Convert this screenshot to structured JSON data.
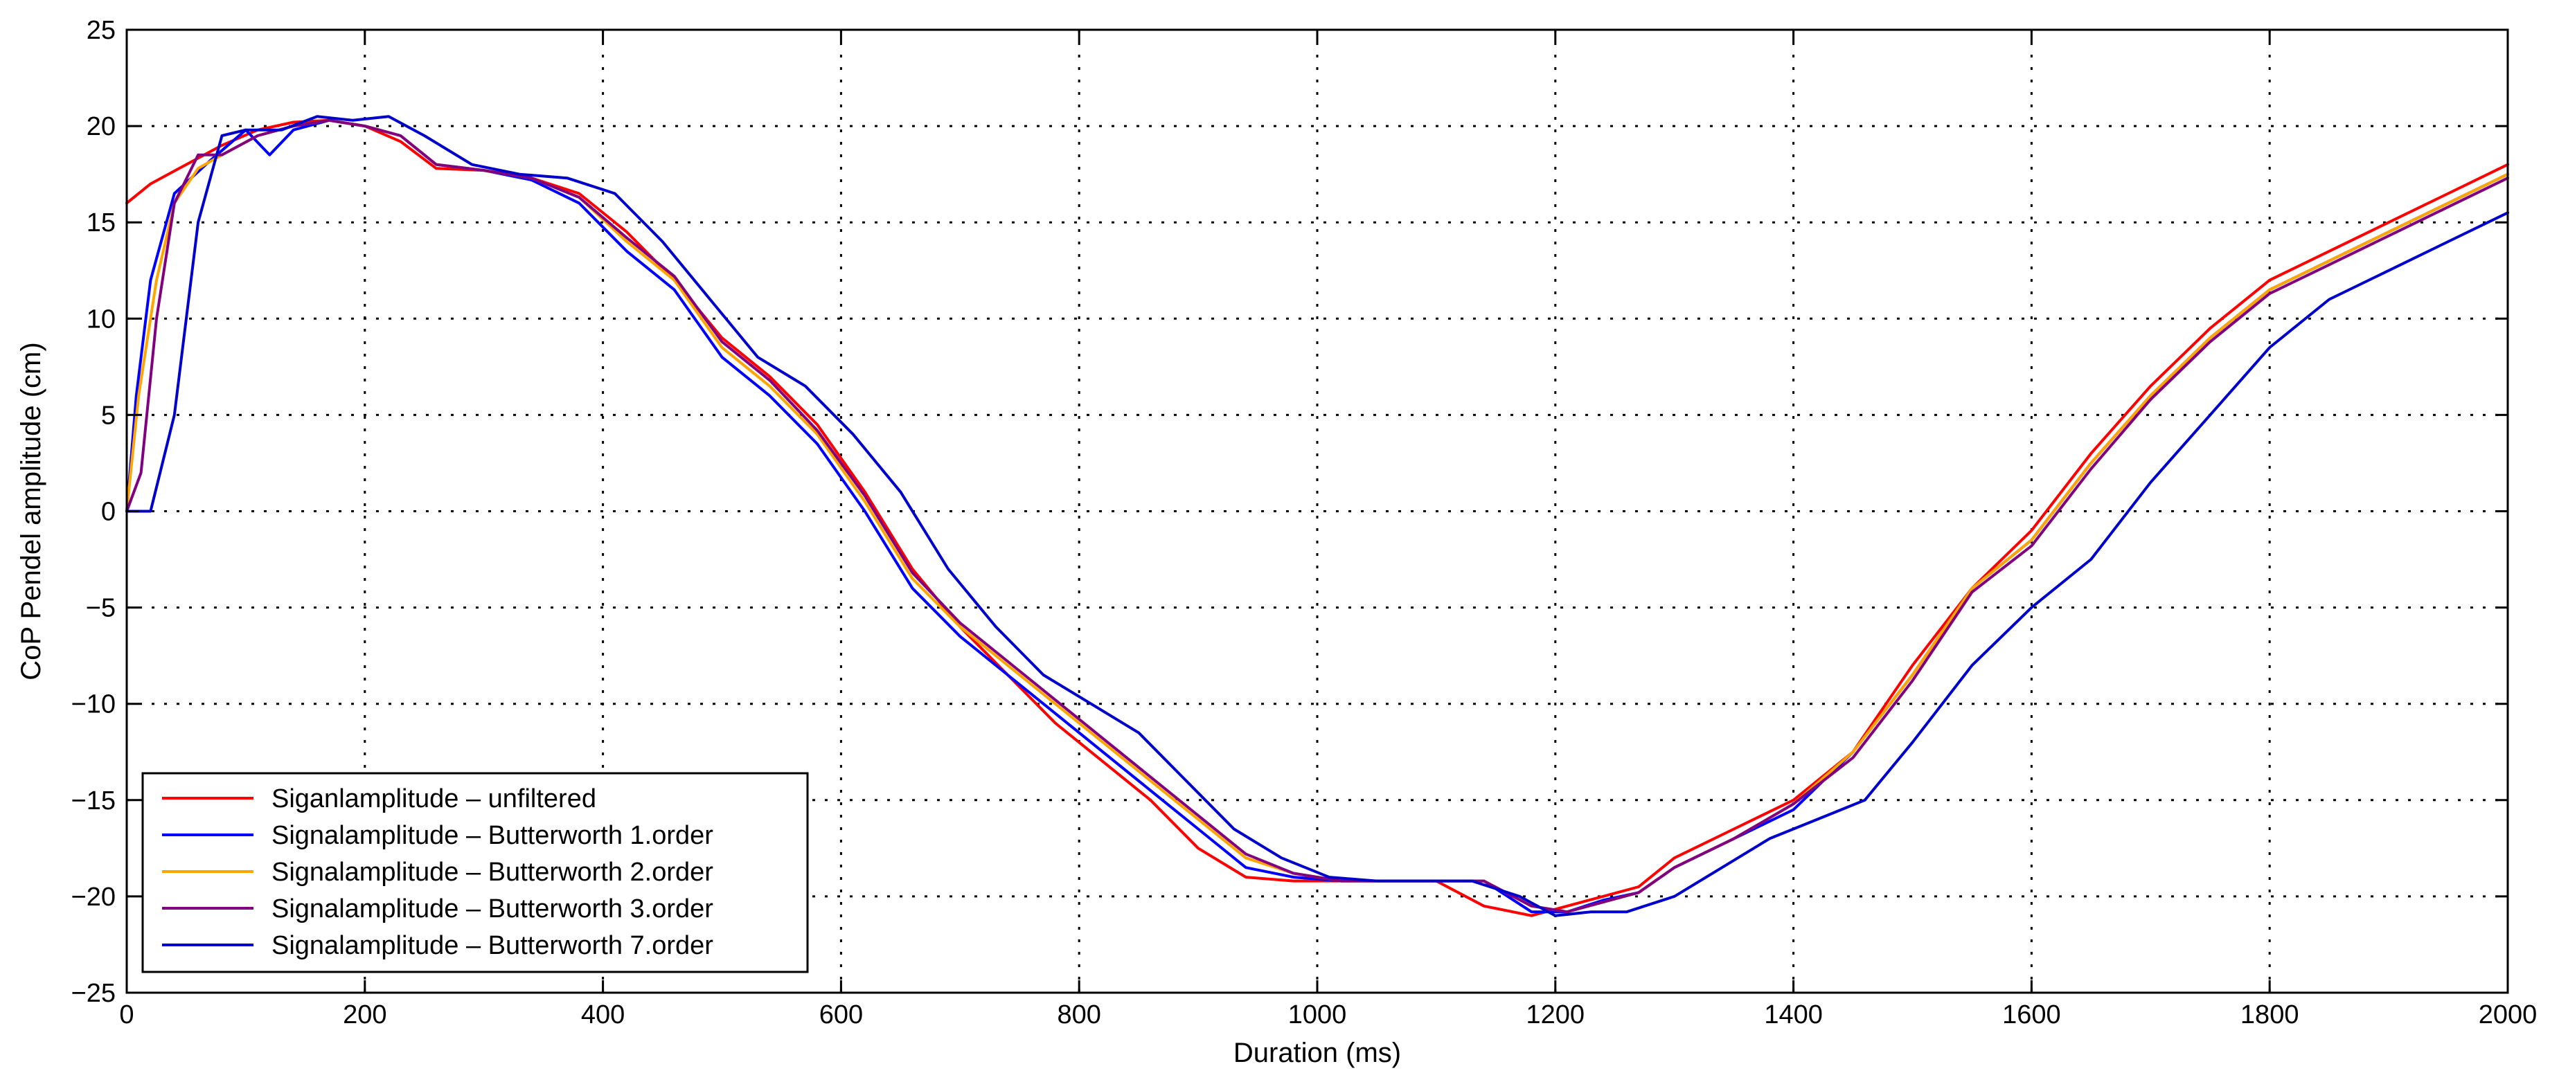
{
  "chart_data": {
    "type": "line",
    "title": "",
    "xlabel": "Duration (ms)",
    "ylabel": "CoP Pendel amplitude (cm)",
    "xlim": [
      0,
      2000
    ],
    "ylim": [
      -25,
      25
    ],
    "xticks": [
      0,
      200,
      400,
      600,
      800,
      1000,
      1200,
      1400,
      1600,
      1800,
      2000
    ],
    "yticks": [
      25,
      20,
      15,
      10,
      5,
      0,
      -5,
      -10,
      -15,
      -20,
      -25
    ],
    "grid": true,
    "legend_position": "bottom-left",
    "series": [
      {
        "name": "Siganlamplitude – unfiltered",
        "color": "#ff0000",
        "x": [
          0,
          20,
          50,
          80,
          110,
          140,
          170,
          200,
          230,
          260,
          300,
          340,
          380,
          420,
          460,
          500,
          540,
          580,
          620,
          660,
          700,
          740,
          780,
          820,
          860,
          900,
          940,
          980,
          1010,
          1050,
          1100,
          1140,
          1180,
          1210,
          1240,
          1270,
          1300,
          1350,
          1400,
          1450,
          1500,
          1550,
          1600,
          1650,
          1700,
          1750,
          1800,
          1850,
          1900,
          1950,
          2000
        ],
        "y": [
          16,
          17,
          18,
          19,
          19.8,
          20.2,
          20.3,
          20,
          19.2,
          17.8,
          17.7,
          17.3,
          16.5,
          14.5,
          12,
          9,
          7,
          4.5,
          1,
          -3,
          -6,
          -8.5,
          -11,
          -13,
          -15,
          -17.5,
          -19,
          -19.2,
          -19.2,
          -19.2,
          -19.2,
          -20.5,
          -21,
          -20.5,
          -20,
          -19.5,
          -18,
          -16.5,
          -15,
          -12.5,
          -8,
          -4,
          -1,
          3,
          6.5,
          9.5,
          12,
          13.5,
          15,
          16.5,
          18
        ]
      },
      {
        "name": "Signalamplitude – Butterworth 1.order",
        "color": "#0000ff",
        "x": [
          0,
          8,
          20,
          40,
          70,
          100,
          120,
          140,
          170,
          200,
          230,
          260,
          300,
          340,
          380,
          420,
          460,
          500,
          540,
          580,
          620,
          660,
          700,
          740,
          780,
          820,
          860,
          900,
          940,
          980,
          1020,
          1060,
          1100,
          1140,
          1180,
          1210,
          1240,
          1270,
          1300,
          1350,
          1400,
          1450,
          1500,
          1550,
          1600,
          1650,
          1700,
          1750,
          1800,
          1850,
          1900,
          1950,
          2000
        ],
        "y": [
          0,
          6,
          12,
          16.5,
          18.2,
          19.8,
          18.5,
          19.8,
          20.3,
          20,
          19.5,
          18,
          17.7,
          17.2,
          16,
          13.5,
          11.5,
          8,
          6,
          3.5,
          0,
          -4,
          -6.5,
          -8.5,
          -10.5,
          -12.5,
          -14.5,
          -16.5,
          -18.5,
          -19,
          -19.2,
          -19.2,
          -19.2,
          -19.2,
          -20.8,
          -20.8,
          -20.2,
          -19.8,
          -18.5,
          -17,
          -15.5,
          -12.5,
          -8.5,
          -4,
          -1.5,
          2.5,
          6,
          9,
          11.5,
          13,
          14.5,
          16,
          17.5
        ]
      },
      {
        "name": "Signalamplitude – Butterworth 2.order",
        "color": "#ffa500",
        "x": [
          0,
          10,
          25,
          40,
          60,
          80,
          110,
          140,
          170,
          200,
          230,
          260,
          300,
          340,
          380,
          420,
          460,
          500,
          540,
          580,
          620,
          660,
          700,
          740,
          780,
          820,
          860,
          900,
          940,
          980,
          1020,
          1060,
          1100,
          1140,
          1180,
          1210,
          1240,
          1270,
          1300,
          1350,
          1400,
          1450,
          1500,
          1550,
          1600,
          1650,
          1700,
          1750,
          1800,
          1850,
          1900,
          1950,
          2000
        ],
        "y": [
          0,
          6,
          12,
          16,
          17.8,
          18.5,
          19.5,
          20,
          20.3,
          20,
          19.5,
          18,
          17.7,
          17.3,
          16.3,
          14,
          12,
          8.5,
          6.5,
          4,
          0.5,
          -3.5,
          -6,
          -8,
          -10,
          -12,
          -14,
          -16,
          -18,
          -18.8,
          -19.2,
          -19.2,
          -19.2,
          -19.2,
          -20.5,
          -20.8,
          -20.3,
          -19.8,
          -18.5,
          -17,
          -15.2,
          -12.5,
          -8.5,
          -4,
          -1.5,
          2.5,
          6,
          9,
          11.5,
          13,
          14.5,
          16,
          17.5
        ]
      },
      {
        "name": "Signalamplitude – Butterworth 3.order",
        "color": "#800080",
        "x": [
          0,
          12,
          25,
          40,
          60,
          80,
          110,
          140,
          170,
          200,
          230,
          260,
          300,
          340,
          380,
          420,
          460,
          500,
          540,
          580,
          620,
          660,
          700,
          740,
          780,
          820,
          860,
          900,
          940,
          980,
          1020,
          1060,
          1100,
          1140,
          1180,
          1210,
          1240,
          1270,
          1300,
          1350,
          1400,
          1450,
          1500,
          1550,
          1600,
          1650,
          1700,
          1750,
          1800,
          1850,
          1900,
          1950,
          2000
        ],
        "y": [
          0,
          2,
          10,
          16,
          18.5,
          18.5,
          19.5,
          20,
          20.3,
          20,
          19.5,
          18,
          17.7,
          17.3,
          16.3,
          14.2,
          12.2,
          8.8,
          6.8,
          4.2,
          0.8,
          -3.2,
          -5.8,
          -7.8,
          -9.8,
          -11.8,
          -13.8,
          -15.8,
          -17.8,
          -18.8,
          -19.2,
          -19.2,
          -19.2,
          -19.2,
          -20.5,
          -20.8,
          -20.3,
          -19.8,
          -18.5,
          -17,
          -15.2,
          -12.8,
          -8.8,
          -4.2,
          -1.8,
          2.2,
          5.8,
          8.8,
          11.3,
          12.8,
          14.3,
          15.8,
          17.3
        ]
      },
      {
        "name": "Signalamplitude – Butterworth 7.order",
        "color": "#0000cd",
        "x": [
          0,
          20,
          40,
          60,
          80,
          100,
          130,
          160,
          190,
          220,
          250,
          290,
          330,
          370,
          410,
          450,
          490,
          530,
          570,
          610,
          650,
          690,
          730,
          770,
          810,
          850,
          890,
          930,
          970,
          1010,
          1050,
          1090,
          1130,
          1170,
          1200,
          1230,
          1260,
          1300,
          1340,
          1380,
          1420,
          1460,
          1500,
          1550,
          1600,
          1650,
          1700,
          1750,
          1800,
          1850,
          1900,
          1950,
          2000
        ],
        "y": [
          0,
          0,
          5,
          15,
          19.5,
          19.8,
          19.8,
          20.5,
          20.3,
          20.5,
          19.5,
          18,
          17.5,
          17.3,
          16.5,
          14,
          11,
          8,
          6.5,
          4,
          1,
          -3,
          -6,
          -8.5,
          -10,
          -11.5,
          -14,
          -16.5,
          -18,
          -19,
          -19.2,
          -19.2,
          -19.2,
          -20,
          -21,
          -20.8,
          -20.8,
          -20,
          -18.5,
          -17,
          -16,
          -15,
          -12,
          -8,
          -5,
          -2.5,
          1.5,
          5,
          8.5,
          11,
          12.5,
          14,
          15.5
        ]
      }
    ]
  }
}
